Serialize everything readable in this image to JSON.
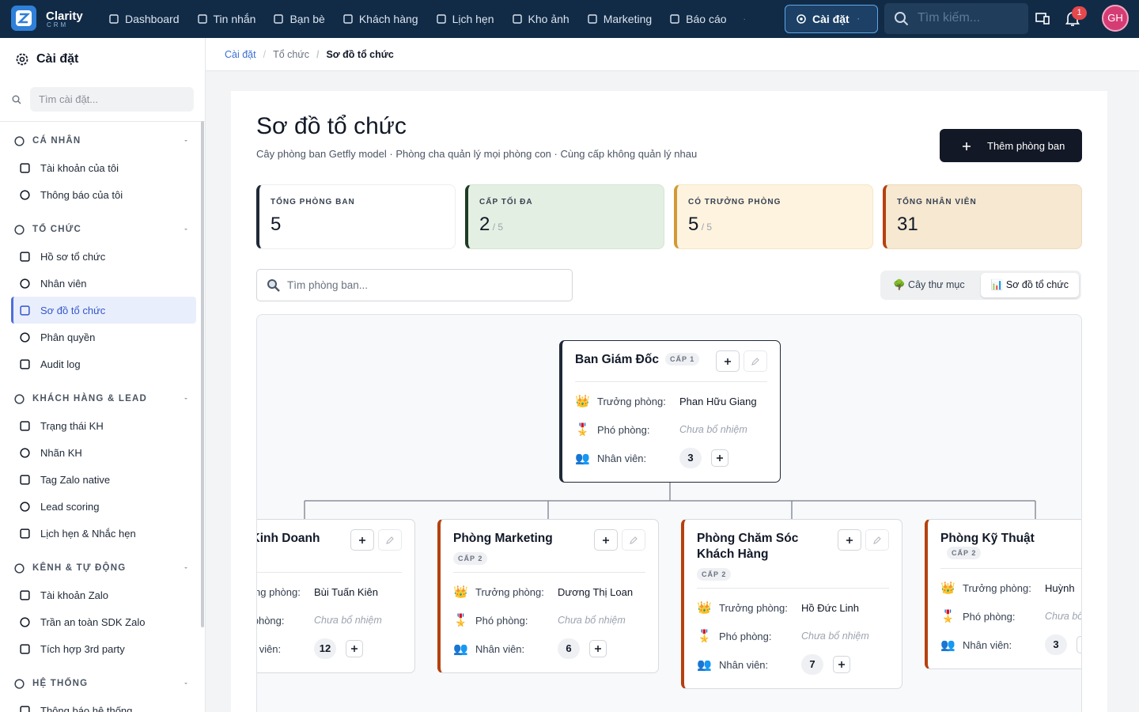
{
  "nav": {
    "brand": "Clarity",
    "brand_sub": "CRM",
    "items": [
      "Dashboard",
      "Tin nhắn",
      "Bạn bè",
      "Khách hàng",
      "Lịch hẹn",
      "Kho ảnh",
      "Marketing",
      "Báo cáo"
    ],
    "active": "Cài đặt",
    "search_placeholder": "Tìm kiếm...",
    "notifications": "1",
    "avatar": "GH"
  },
  "sidebar": {
    "title": "Cài đặt",
    "search_placeholder": "Tìm cài đặt...",
    "groups": [
      {
        "title": "CÁ NHÂN",
        "items": [
          "Tài khoản của tôi",
          "Thông báo của tôi"
        ]
      },
      {
        "title": "TỔ CHỨC",
        "items": [
          "Hồ sơ tổ chức",
          "Nhân viên",
          "Sơ đồ tổ chức",
          "Phân quyền",
          "Audit log"
        ]
      },
      {
        "title": "KHÁCH HÀNG & LEAD",
        "items": [
          "Trạng thái KH",
          "Nhãn KH",
          "Tag Zalo native",
          "Lead scoring",
          "Lịch hẹn & Nhắc hẹn"
        ]
      },
      {
        "title": "KÊNH & TỰ ĐỘNG",
        "items": [
          "Tài khoản Zalo",
          "Trần an toàn SDK Zalo",
          "Tích hợp 3rd party"
        ]
      },
      {
        "title": "HỆ THỐNG",
        "items": [
          "Thông báo hệ thống"
        ]
      }
    ]
  },
  "breadcrumb": [
    "Cài đặt",
    "Tổ chức",
    "Sơ đồ tổ chức"
  ],
  "header": {
    "title": "Sơ đồ tổ chức",
    "subtitle": "Cây phòng ban Getfly model · Phòng cha quản lý mọi phòng con · Cùng cấp không quản lý nhau",
    "button": "Thêm phòng ban"
  },
  "stats": [
    {
      "label": "TỔNG PHÒNG BAN",
      "value": 5
    },
    {
      "label": "CẤP TỐI ĐA",
      "value": 2,
      "total": 5
    },
    {
      "label": "CÓ TRƯỞNG PHÒNG",
      "value": 5,
      "total": 5
    },
    {
      "label": "TỔNG NHÂN VIÊN",
      "value": 31
    }
  ],
  "filter": {
    "search_placeholder": "Tìm phòng ban...",
    "views": [
      "🌳 Cây thư mục",
      "📊 Sơ đồ tổ chức"
    ]
  },
  "org": {
    "labels": {
      "head": "Trưởng phòng:",
      "deputy": "Phó phòng:",
      "staff": "Nhân viên:"
    },
    "icons": {
      "head": "👑",
      "deputy": "🎖️",
      "staff": "👥"
    },
    "root": {
      "name": "Ban Giám Đốc",
      "level": "CẤP 1",
      "head": "Phan Hữu Giang",
      "deputy": "Chưa bổ nhiệm",
      "staff": 3
    },
    "children": [
      {
        "name": "Phòng Kinh Doanh",
        "head": "Bùi Tuấn Kiên",
        "deputy": "Chưa bổ nhiệm",
        "staff": 12
      },
      {
        "name": "Phòng Marketing",
        "level": "CẤP 2",
        "head": "Dương Thị Loan",
        "deputy": "Chưa bổ nhiệm",
        "staff": 6
      },
      {
        "name": "Phòng Chăm Sóc Khách Hàng",
        "level": "CẤP 2",
        "head": "Hồ Đức Linh",
        "deputy": "Chưa bổ nhiệm",
        "staff": 7
      },
      {
        "name": "Phòng Kỹ Thuật",
        "level": "CẤP 2",
        "head": "Huỳnh",
        "deputy": "Chưa bổ nhiệm",
        "staff": 3
      }
    ]
  }
}
